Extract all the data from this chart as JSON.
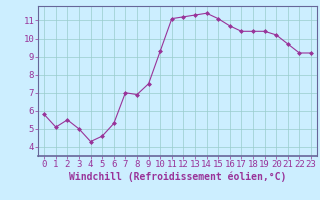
{
  "x": [
    0,
    1,
    2,
    3,
    4,
    5,
    6,
    7,
    8,
    9,
    10,
    11,
    12,
    13,
    14,
    15,
    16,
    17,
    18,
    19,
    20,
    21,
    22,
    23
  ],
  "y": [
    5.8,
    5.1,
    5.5,
    5.0,
    4.3,
    4.6,
    5.3,
    7.0,
    6.9,
    7.5,
    9.3,
    11.1,
    11.2,
    11.3,
    11.4,
    11.1,
    10.7,
    10.4,
    10.4,
    10.4,
    10.2,
    9.7,
    9.2,
    9.2
  ],
  "line_color": "#993399",
  "marker": "D",
  "marker_size": 2,
  "bg_color": "#cceeff",
  "grid_color": "#99cccc",
  "xlabel": "Windchill (Refroidissement éolien,°C)",
  "xlim": [
    -0.5,
    23.5
  ],
  "ylim": [
    3.5,
    11.8
  ],
  "yticks": [
    4,
    5,
    6,
    7,
    8,
    9,
    10,
    11
  ],
  "xticks": [
    0,
    1,
    2,
    3,
    4,
    5,
    6,
    7,
    8,
    9,
    10,
    11,
    12,
    13,
    14,
    15,
    16,
    17,
    18,
    19,
    20,
    21,
    22,
    23
  ],
  "tick_color": "#993399",
  "label_color": "#993399",
  "font_size_xlabel": 7.0,
  "font_size_ticks": 6.5,
  "spine_color": "#666699",
  "linewidth": 0.8
}
